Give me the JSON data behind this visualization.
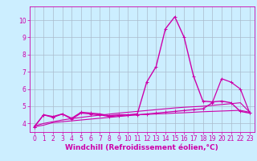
{
  "background_color": "#cceeff",
  "grid_color": "#aabbcc",
  "line_color": "#cc00aa",
  "xlim": [
    -0.5,
    23.5
  ],
  "ylim": [
    3.5,
    10.8
  ],
  "xlabel": "Windchill (Refroidissement éolien,°C)",
  "xlabel_fontsize": 6.5,
  "yticks": [
    4,
    5,
    6,
    7,
    8,
    9,
    10
  ],
  "xticks": [
    0,
    1,
    2,
    3,
    4,
    5,
    6,
    7,
    8,
    9,
    10,
    11,
    12,
    13,
    14,
    15,
    16,
    17,
    18,
    19,
    20,
    21,
    22,
    23
  ],
  "tick_fontsize": 5.5,
  "series": [
    {
      "x": [
        0,
        1,
        2,
        3,
        4,
        5,
        6,
        7,
        8,
        9,
        10,
        11,
        12,
        13,
        14,
        15,
        16,
        17,
        18,
        19,
        20,
        21,
        22,
        23
      ],
      "y": [
        3.8,
        4.5,
        4.4,
        4.55,
        4.3,
        4.65,
        4.6,
        4.55,
        4.45,
        4.5,
        4.5,
        4.55,
        6.4,
        7.3,
        9.5,
        10.2,
        9.0,
        6.75,
        5.3,
        5.25,
        5.3,
        5.2,
        4.7,
        4.6
      ],
      "marker": "+",
      "markersize": 3.5,
      "linewidth": 1.0
    },
    {
      "x": [
        0,
        1,
        2,
        3,
        4,
        5,
        6,
        7,
        8,
        9,
        10,
        11,
        12,
        13,
        14,
        15,
        16,
        17,
        18,
        19,
        20,
        21,
        22,
        23
      ],
      "y": [
        3.8,
        4.5,
        4.35,
        4.55,
        4.25,
        4.6,
        4.55,
        4.5,
        4.4,
        4.45,
        4.5,
        4.5,
        4.55,
        4.6,
        4.65,
        4.7,
        4.75,
        4.8,
        4.85,
        5.2,
        6.6,
        6.4,
        6.0,
        4.6
      ],
      "marker": "+",
      "markersize": 3.0,
      "linewidth": 0.9
    },
    {
      "x": [
        0,
        1,
        2,
        3,
        4,
        5,
        6,
        7,
        8,
        9,
        10,
        11,
        12,
        13,
        14,
        15,
        16,
        17,
        18,
        19,
        20,
        21,
        22,
        23
      ],
      "y": [
        3.85,
        4.0,
        4.1,
        4.2,
        4.28,
        4.35,
        4.42,
        4.48,
        4.54,
        4.6,
        4.65,
        4.7,
        4.75,
        4.8,
        4.85,
        4.9,
        4.94,
        4.97,
        5.0,
        5.05,
        5.1,
        5.15,
        5.2,
        4.65
      ],
      "marker": null,
      "markersize": 0,
      "linewidth": 0.8
    },
    {
      "x": [
        0,
        1,
        2,
        3,
        4,
        5,
        6,
        7,
        8,
        9,
        10,
        11,
        12,
        13,
        14,
        15,
        16,
        17,
        18,
        19,
        20,
        21,
        22,
        23
      ],
      "y": [
        3.8,
        3.9,
        4.05,
        4.1,
        4.15,
        4.2,
        4.25,
        4.3,
        4.35,
        4.4,
        4.45,
        4.5,
        4.52,
        4.55,
        4.57,
        4.6,
        4.62,
        4.65,
        4.68,
        4.7,
        4.72,
        4.74,
        4.76,
        4.65
      ],
      "marker": null,
      "markersize": 0,
      "linewidth": 0.8
    }
  ]
}
